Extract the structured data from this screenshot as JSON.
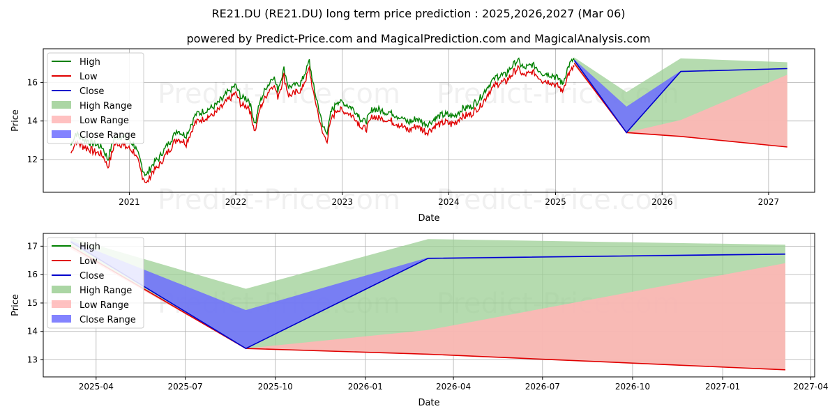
{
  "title": "RE21.DU (RE21.DU) long term price prediction : 2025,2026,2027 (Mar 06)",
  "subtitle": "powered by Predict-Price.com and MagicalPrediction.com and MagicalAnalysis.com",
  "watermark": "Predict-Price.com",
  "colors": {
    "high": "#008000",
    "low": "#e00000",
    "close": "#0000cc",
    "high_range": "#9ccf94",
    "low_range": "#ffb6b6",
    "close_range": "#6d6dff",
    "grid": "#b0b0b0"
  },
  "chart_data": [
    {
      "type": "line",
      "xlabel": "Date",
      "ylabel": "Price",
      "x_ticks": [
        "2021",
        "2022",
        "2023",
        "2024",
        "2025",
        "2026",
        "2027"
      ],
      "y_ticks": [
        12,
        14,
        16
      ],
      "xlim": [
        "2020-03-12",
        "2027-06-08"
      ],
      "ylim": [
        10.3,
        17.75
      ],
      "grid": true,
      "legend": {
        "position": "top-left",
        "entries": [
          "High",
          "Low",
          "Close",
          "High Range",
          "Low Range",
          "Close Range"
        ]
      },
      "history_points": [
        [
          "2020-06-15",
          12.5
        ],
        [
          "2020-07-01",
          13.1
        ],
        [
          "2020-08-01",
          12.8
        ],
        [
          "2020-09-01",
          12.6
        ],
        [
          "2020-10-01",
          12.4
        ],
        [
          "2020-10-20",
          11.8
        ],
        [
          "2020-11-10",
          12.9
        ],
        [
          "2020-12-01",
          13.0
        ],
        [
          "2020-12-25",
          12.8
        ],
        [
          "2021-01-15",
          12.6
        ],
        [
          "2021-02-01",
          12.0
        ],
        [
          "2021-02-15",
          11.3
        ],
        [
          "2021-03-01",
          10.9
        ],
        [
          "2021-03-20",
          11.5
        ],
        [
          "2021-04-15",
          11.9
        ],
        [
          "2021-05-15",
          12.6
        ],
        [
          "2021-06-15",
          13.3
        ],
        [
          "2021-07-15",
          13.0
        ],
        [
          "2021-08-15",
          14.1
        ],
        [
          "2021-09-15",
          14.3
        ],
        [
          "2021-10-15",
          14.5
        ],
        [
          "2021-11-15",
          14.9
        ],
        [
          "2021-12-15",
          15.4
        ],
        [
          "2022-01-01",
          15.6
        ],
        [
          "2022-01-20",
          15.0
        ],
        [
          "2022-02-15",
          14.9
        ],
        [
          "2022-03-08",
          13.6
        ],
        [
          "2022-03-25",
          14.8
        ],
        [
          "2022-04-15",
          15.5
        ],
        [
          "2022-05-10",
          16.1
        ],
        [
          "2022-05-25",
          15.4
        ],
        [
          "2022-06-15",
          16.5
        ],
        [
          "2022-07-01",
          15.5
        ],
        [
          "2022-07-20",
          15.6
        ],
        [
          "2022-08-15",
          15.8
        ],
        [
          "2022-09-10",
          16.9
        ],
        [
          "2022-09-25",
          15.5
        ],
        [
          "2022-10-10",
          14.6
        ],
        [
          "2022-10-25",
          13.5
        ],
        [
          "2022-11-10",
          13.2
        ],
        [
          "2022-11-25",
          14.3
        ],
        [
          "2022-12-15",
          14.8
        ],
        [
          "2023-01-01",
          14.7
        ],
        [
          "2023-01-20",
          14.6
        ],
        [
          "2023-02-15",
          14.3
        ],
        [
          "2023-03-10",
          13.8
        ],
        [
          "2023-03-25",
          13.8
        ],
        [
          "2023-04-15",
          14.4
        ],
        [
          "2023-05-15",
          14.3
        ],
        [
          "2023-06-15",
          14.2
        ],
        [
          "2023-07-15",
          14.0
        ],
        [
          "2023-08-15",
          13.7
        ],
        [
          "2023-09-15",
          13.9
        ],
        [
          "2023-10-15",
          13.6
        ],
        [
          "2023-11-15",
          13.9
        ],
        [
          "2023-12-15",
          14.1
        ],
        [
          "2024-01-15",
          14.0
        ],
        [
          "2024-02-15",
          14.4
        ],
        [
          "2024-03-15",
          14.5
        ],
        [
          "2024-04-15",
          14.9
        ],
        [
          "2024-05-15",
          15.6
        ],
        [
          "2024-06-15",
          16.1
        ],
        [
          "2024-07-15",
          16.2
        ],
        [
          "2024-08-10",
          16.7
        ],
        [
          "2024-08-25",
          16.9
        ],
        [
          "2024-09-15",
          16.5
        ],
        [
          "2024-10-15",
          16.7
        ],
        [
          "2024-11-15",
          16.3
        ],
        [
          "2024-12-15",
          16.2
        ],
        [
          "2025-01-10",
          16.0
        ],
        [
          "2025-01-25",
          15.7
        ],
        [
          "2025-02-10",
          16.5
        ],
        [
          "2025-03-06",
          17.0
        ]
      ],
      "forecast_dates": [
        "2025-03-06",
        "2025-09-01",
        "2026-03-06",
        "2027-03-06"
      ],
      "high": [
        17.3,
        15.5,
        17.25,
        17.05
      ],
      "low": [
        17.0,
        13.4,
        13.2,
        12.65
      ],
      "close": [
        17.15,
        13.4,
        16.57,
        16.72
      ],
      "close_band_top": [
        17.2,
        14.75,
        16.6,
        16.75
      ],
      "low_band_top": [
        16.9,
        13.4,
        14.05,
        16.4
      ]
    },
    {
      "type": "area",
      "xlabel": "Date",
      "ylabel": "Price",
      "x_ticks": [
        "2025-04",
        "2025-07",
        "2025-10",
        "2026-01",
        "2026-04",
        "2026-07",
        "2026-10",
        "2027-01",
        "2027-04"
      ],
      "y_ticks": [
        13,
        14,
        15,
        16,
        17
      ],
      "xlim": [
        "2025-02-06",
        "2027-04-05"
      ],
      "ylim": [
        12.4,
        17.45
      ],
      "grid": true,
      "legend": {
        "position": "top-left",
        "entries": [
          "High",
          "Low",
          "Close",
          "High Range",
          "Low Range",
          "Close Range"
        ]
      },
      "dates": [
        "2025-03-06",
        "2025-09-01",
        "2026-03-06",
        "2027-03-06"
      ],
      "high": [
        17.3,
        15.5,
        17.25,
        17.05
      ],
      "low": [
        17.0,
        13.4,
        13.2,
        12.65
      ],
      "close": [
        17.15,
        13.4,
        16.57,
        16.72
      ],
      "close_band_top": [
        17.2,
        14.75,
        16.6,
        16.75
      ],
      "low_band_top": [
        16.9,
        13.4,
        14.05,
        16.4
      ]
    }
  ]
}
